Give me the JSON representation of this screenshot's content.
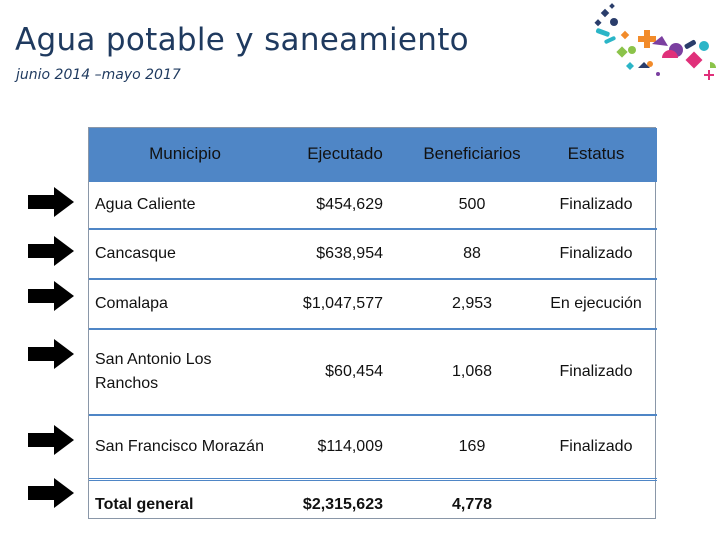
{
  "header": {
    "title": "Agua potable y saneamiento",
    "subtitle": "junio 2014 –mayo 2017"
  },
  "colors": {
    "header_fill": "#4f86c6",
    "title_color": "#1f3a5f",
    "arrow_color": "#000000"
  },
  "table": {
    "columns": [
      "Municipio",
      "Ejecutado",
      "Beneficiarios",
      "Estatus"
    ],
    "rows": [
      {
        "municipio": "Agua Caliente",
        "ejecutado": "$454,629",
        "beneficiarios": "500",
        "estatus": "Finalizado"
      },
      {
        "municipio": "Cancasque",
        "ejecutado": "$638,954",
        "beneficiarios": "88",
        "estatus": "Finalizado"
      },
      {
        "municipio": "Comalapa",
        "ejecutado": "$1,047,577",
        "beneficiarios": "2,953",
        "estatus": "En ejecución"
      },
      {
        "municipio": "San Antonio Los Ranchos",
        "ejecutado": "$60,454",
        "beneficiarios": "1,068",
        "estatus": "Finalizado"
      },
      {
        "municipio": "San Francisco Morazán",
        "ejecutado": "$114,009",
        "beneficiarios": "169",
        "estatus": "Finalizado"
      }
    ],
    "total": {
      "label": "Total general",
      "ejecutado": "$2,315,623",
      "beneficiarios": "4,778"
    }
  },
  "icons": [
    "arrow-right-icon",
    "logo-confetti-icon"
  ]
}
